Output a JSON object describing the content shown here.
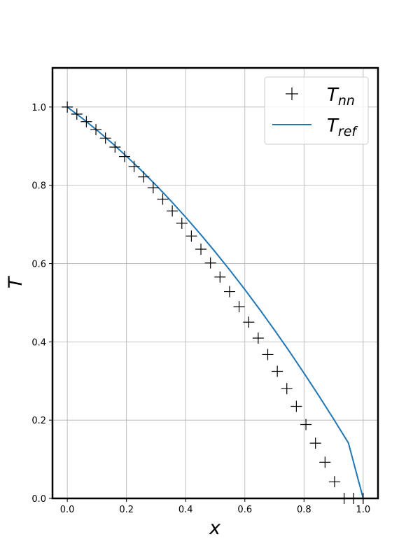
{
  "chart_data": {
    "type": "line",
    "xlabel": "x",
    "ylabel": "T",
    "xlim": [
      -0.05,
      1.05
    ],
    "ylim": [
      0.0,
      1.1
    ],
    "xticks": [
      "0.0",
      "0.2",
      "0.4",
      "0.6",
      "0.8",
      "1.0"
    ],
    "yticks": [
      "0.0",
      "0.2",
      "0.4",
      "0.6",
      "0.8",
      "1.0"
    ],
    "xtick_values": [
      0.0,
      0.2,
      0.4,
      0.6,
      0.8,
      1.0
    ],
    "ytick_values": [
      0.0,
      0.2,
      0.4,
      0.6,
      0.8,
      1.0
    ],
    "grid": true,
    "legend_position": "top-right",
    "series": [
      {
        "name_main": "T",
        "name_sub": "nn",
        "marker": "plus",
        "color": "#000000",
        "x": [
          0.0,
          0.0323,
          0.0645,
          0.0968,
          0.129,
          0.1613,
          0.1935,
          0.2258,
          0.2581,
          0.2903,
          0.3226,
          0.3548,
          0.3871,
          0.4194,
          0.4516,
          0.4839,
          0.5161,
          0.5484,
          0.5806,
          0.6129,
          0.6452,
          0.6774,
          0.7097,
          0.7419,
          0.7742,
          0.8065,
          0.8387,
          0.871,
          0.9032,
          0.9355,
          0.9677,
          1.0
        ],
        "y": [
          1.0,
          0.9819,
          0.9627,
          0.9423,
          0.9206,
          0.8977,
          0.8735,
          0.8481,
          0.8215,
          0.7937,
          0.7647,
          0.7344,
          0.703,
          0.6704,
          0.6367,
          0.6017,
          0.5656,
          0.5284,
          0.4899,
          0.4503,
          0.4096,
          0.3677,
          0.3247,
          0.2805,
          0.2352,
          0.1887,
          0.1411,
          0.0924,
          0.0426,
          0.0,
          0.0,
          0.0
        ]
      },
      {
        "name_main": "T",
        "name_sub": "ref",
        "marker": "line",
        "color": "#1f77b4",
        "x": [
          0.0,
          0.05,
          0.1,
          0.15,
          0.2,
          0.25,
          0.3,
          0.35,
          0.4,
          0.45,
          0.5,
          0.55,
          0.6,
          0.65,
          0.7,
          0.75,
          0.8,
          0.85,
          0.9,
          0.95,
          1.0
        ],
        "y": [
          1.0,
          0.9715,
          0.941,
          0.9086,
          0.8743,
          0.8382,
          0.8002,
          0.7603,
          0.7186,
          0.6751,
          0.6297,
          0.5826,
          0.5336,
          0.4829,
          0.4304,
          0.3761,
          0.32,
          0.2623,
          0.2028,
          0.1416,
          0.0
        ]
      }
    ]
  },
  "colors": {
    "grid": "#b0b0b0",
    "frame": "#000000",
    "ref_line": "#1f77b4",
    "markers": "#000000"
  }
}
